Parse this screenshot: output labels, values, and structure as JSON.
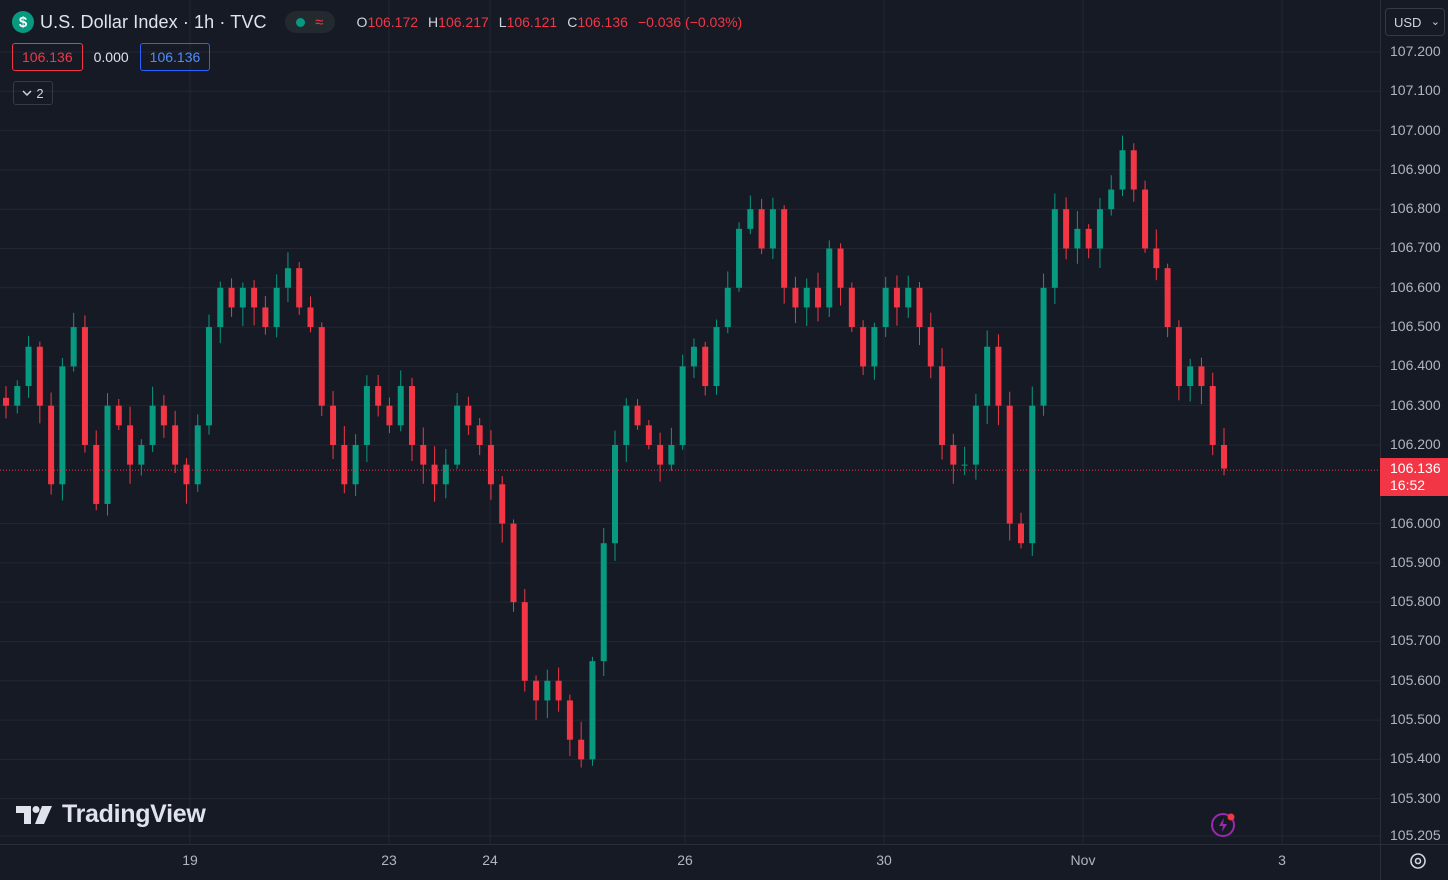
{
  "header": {
    "symbol_icon_glyph": "$",
    "title": "U.S. Dollar Index · 1h · TVC",
    "ohlc": [
      {
        "key": "O",
        "value": "106.172"
      },
      {
        "key": "H",
        "value": "106.217"
      },
      {
        "key": "L",
        "value": "106.121"
      },
      {
        "key": "C",
        "value": "106.136"
      }
    ],
    "change": "−0.036 (−0.03%)",
    "market_status_icon": "market-open-dot-icon",
    "extended_icon": "wave-icon"
  },
  "price_boxes": {
    "sell": "106.136",
    "spread": "0.000",
    "buy": "106.136"
  },
  "indicators_toggle": {
    "count": "2",
    "icon": "chevron-down-icon"
  },
  "logo_text": "TradingView",
  "currency_button": {
    "label": "USD",
    "icon": "chevron-down-icon"
  },
  "price_axis": {
    "ticks": [
      "107.200",
      "107.100",
      "107.000",
      "106.900",
      "106.800",
      "106.700",
      "106.600",
      "106.500",
      "106.400",
      "106.300",
      "106.200",
      "106.000",
      "105.900",
      "105.800",
      "105.700",
      "105.600",
      "105.500",
      "105.400",
      "105.300",
      "105.205"
    ],
    "last_price": "106.136",
    "countdown": "16:52"
  },
  "time_axis": {
    "labels": [
      "19",
      "23",
      "24",
      "26",
      "30",
      "Nov",
      "3"
    ]
  },
  "colors": {
    "background": "#161a25",
    "up": "#089981",
    "down": "#f23645",
    "grid": "#232733",
    "text": "#b2b5be"
  },
  "chart_data": {
    "type": "candlestick",
    "interval": "1h",
    "ylim": [
      105.205,
      107.2
    ],
    "last_price": 106.136,
    "close_series": [
      106.3,
      106.35,
      106.45,
      106.3,
      106.1,
      106.4,
      106.5,
      106.2,
      106.05,
      106.3,
      106.25,
      106.15,
      106.2,
      106.3,
      106.25,
      106.15,
      106.1,
      106.25,
      106.5,
      106.6,
      106.55,
      106.6,
      106.55,
      106.5,
      106.6,
      106.65,
      106.55,
      106.5,
      106.3,
      106.2,
      106.1,
      106.2,
      106.35,
      106.3,
      106.25,
      106.35,
      106.2,
      106.15,
      106.1,
      106.15,
      106.3,
      106.25,
      106.2,
      106.1,
      106.0,
      105.8,
      105.6,
      105.55,
      105.6,
      105.55,
      105.45,
      105.4,
      105.65,
      105.95,
      106.2,
      106.3,
      106.25,
      106.2,
      106.15,
      106.2,
      106.4,
      106.45,
      106.35,
      106.5,
      106.6,
      106.75,
      106.8,
      106.7,
      106.8,
      106.6,
      106.55,
      106.6,
      106.55,
      106.7,
      106.6,
      106.5,
      106.4,
      106.5,
      106.6,
      106.55,
      106.6,
      106.5,
      106.4,
      106.2,
      106.15,
      106.15,
      106.3,
      106.45,
      106.3,
      106.0,
      105.95,
      106.3,
      106.6,
      106.8,
      106.7,
      106.75,
      106.7,
      106.8,
      106.85,
      106.95,
      106.85,
      106.7,
      106.65,
      106.5,
      106.35,
      106.4,
      106.35,
      106.2,
      106.14
    ],
    "gap_after_index": 103,
    "time_labels": [
      "19",
      "23",
      "24",
      "26",
      "30",
      "Nov",
      "3"
    ],
    "y_ticks": [
      107.2,
      107.1,
      107.0,
      106.9,
      106.8,
      106.7,
      106.6,
      106.5,
      106.4,
      106.3,
      106.2,
      106.0,
      105.9,
      105.8,
      105.7,
      105.6,
      105.5,
      105.4,
      105.3,
      105.205
    ]
  }
}
